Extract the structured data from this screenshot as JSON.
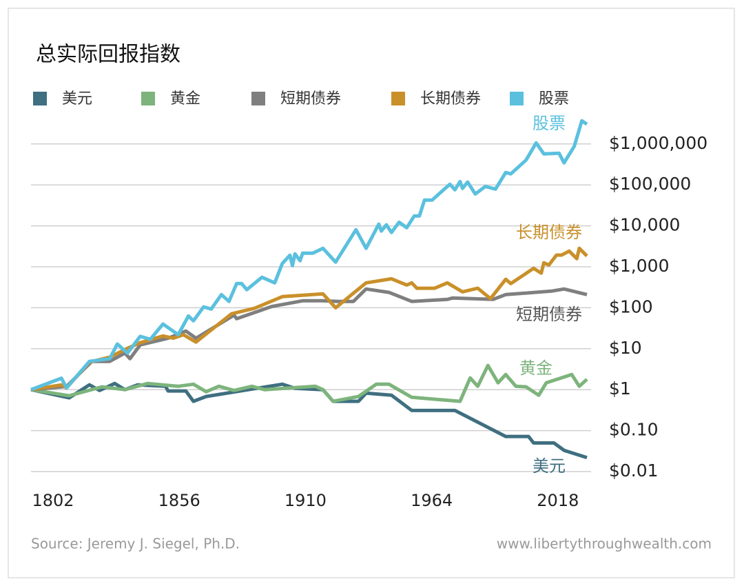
{
  "chart_data": {
    "type": "line",
    "title": "总实际回报指数",
    "source": "Source: Jeremy J. Siegel, Ph.D.",
    "website": "www.libertythroughwealth.com",
    "yscale": "log",
    "grid": true,
    "legend": "top",
    "xlim": [
      1802,
      2021
    ],
    "xticks": [
      1802,
      1856,
      1910,
      1964,
      2018
    ],
    "ylim": [
      0.01,
      10000000
    ],
    "yticks": [
      {
        "value": 0.01,
        "label": "$0.01"
      },
      {
        "value": 0.1,
        "label": "$0.10"
      },
      {
        "value": 1,
        "label": "$1"
      },
      {
        "value": 10,
        "label": "$10"
      },
      {
        "value": 100,
        "label": "$100"
      },
      {
        "value": 1000,
        "label": "$1,000"
      },
      {
        "value": 10000,
        "label": "$10,000"
      },
      {
        "value": 100000,
        "label": "$100,000"
      },
      {
        "value": 1000000,
        "label": "$1,000,000"
      }
    ],
    "series": [
      {
        "name": "美元",
        "color": "#3f6f80",
        "x": [
          1802,
          1817,
          1825,
          1829,
          1835,
          1839,
          1844,
          1855,
          1856,
          1863,
          1866,
          1871,
          1901,
          1906,
          1917,
          1921,
          1931,
          1934,
          1944,
          1952,
          1969,
          1989,
          1998,
          2000,
          2008,
          2012,
          2021
        ],
        "values": [
          1,
          0.63,
          1.31,
          0.96,
          1.42,
          1,
          1.31,
          1.21,
          0.93,
          0.93,
          0.52,
          0.68,
          1.36,
          1.08,
          1,
          0.52,
          0.52,
          0.82,
          0.73,
          0.31,
          0.31,
          0.072,
          0.072,
          0.05,
          0.05,
          0.033,
          0.022
        ]
      },
      {
        "name": "黄金",
        "color": "#7db47c",
        "x": [
          1802,
          1817,
          1830,
          1839,
          1848,
          1860,
          1866,
          1871,
          1876,
          1882,
          1889,
          1894,
          1902,
          1914,
          1917,
          1921,
          1931,
          1938,
          1943,
          1952,
          1971,
          1975,
          1978,
          1982,
          1986,
          1989,
          1993,
          1997,
          2002,
          2005,
          2015,
          2018,
          2021
        ],
        "values": [
          1,
          0.71,
          1.17,
          1,
          1.42,
          1.21,
          1.36,
          0.89,
          1.21,
          0.96,
          1.21,
          1,
          1.08,
          1.21,
          1,
          0.52,
          0.68,
          1.36,
          1.36,
          0.65,
          0.52,
          1.93,
          1.21,
          3.9,
          1.47,
          2.35,
          1.21,
          1.17,
          0.73,
          1.47,
          2.35,
          1.21,
          1.79
        ]
      },
      {
        "name": "短期债券",
        "color": "#7f7f7f",
        "x": [
          1802,
          1816,
          1826,
          1833,
          1839,
          1841,
          1845,
          1856,
          1863,
          1867,
          1882,
          1883,
          1897,
          1909,
          1917,
          1923,
          1929,
          1934,
          1943,
          1952,
          1966,
          1968,
          1984,
          1989,
          2007,
          2012,
          2021
        ],
        "values": [
          1,
          1.2,
          4.9,
          4.9,
          7.8,
          5.7,
          12.4,
          18,
          27,
          18,
          66,
          54,
          108,
          148,
          148,
          143,
          143,
          287,
          237,
          143,
          160,
          173,
          160,
          210,
          255,
          287,
          210
        ]
      },
      {
        "name": "长期债券",
        "color": "#c9902a",
        "x": [
          1802,
          1814,
          1816,
          1825,
          1833,
          1840,
          1845,
          1854,
          1858,
          1862,
          1867,
          1881,
          1890,
          1901,
          1917,
          1922,
          1934,
          1944,
          1950,
          1952,
          1954,
          1961,
          1966,
          1972,
          1978,
          1983,
          1989,
          1991,
          2000,
          2003,
          2004,
          2006,
          2009,
          2011,
          2014,
          2017,
          2018,
          2021
        ],
        "values": [
          1,
          1.3,
          1.1,
          4.7,
          6.2,
          10.2,
          14,
          20.5,
          18,
          22,
          14.5,
          71,
          97,
          187,
          218,
          100,
          405,
          510,
          360,
          405,
          300,
          300,
          405,
          245,
          300,
          167,
          495,
          390,
          920,
          700,
          1250,
          1100,
          1930,
          1930,
          2420,
          1580,
          2830,
          1840
        ]
      },
      {
        "name": "股票",
        "color": "#5bc0de",
        "x": [
          1802,
          1814,
          1816,
          1825,
          1833,
          1836,
          1840,
          1845,
          1849,
          1854,
          1860,
          1864,
          1866,
          1870,
          1873,
          1877,
          1880,
          1883,
          1885,
          1887,
          1893,
          1898,
          1901,
          1904,
          1905,
          1906,
          1908,
          1909,
          1913,
          1917,
          1922,
          1930,
          1934,
          1939,
          1940,
          1942,
          1944,
          1947,
          1950,
          1953,
          1955,
          1957,
          1960,
          1967,
          1969,
          1971,
          1972,
          1974,
          1977,
          1981,
          1985,
          1989,
          1991,
          1997,
          2001,
          2004,
          2010,
          2012,
          2016,
          2019,
          2021
        ],
        "values": [
          1,
          1.9,
          1.1,
          4.9,
          5.7,
          13,
          7.8,
          20,
          17,
          40,
          22,
          63,
          48,
          105,
          93,
          210,
          143,
          390,
          390,
          276,
          555,
          406,
          1205,
          1920,
          1070,
          2070,
          1405,
          2150,
          2150,
          2830,
          1300,
          8050,
          2830,
          11000,
          7450,
          10600,
          6900,
          12300,
          9000,
          17500,
          17500,
          42600,
          42600,
          104000,
          76000,
          121000,
          82000,
          117000,
          60000,
          92000,
          79000,
          201000,
          186000,
          404000,
          1060000,
          573000,
          594000,
          346000,
          877000,
          3680000,
          3030000
        ]
      }
    ]
  }
}
